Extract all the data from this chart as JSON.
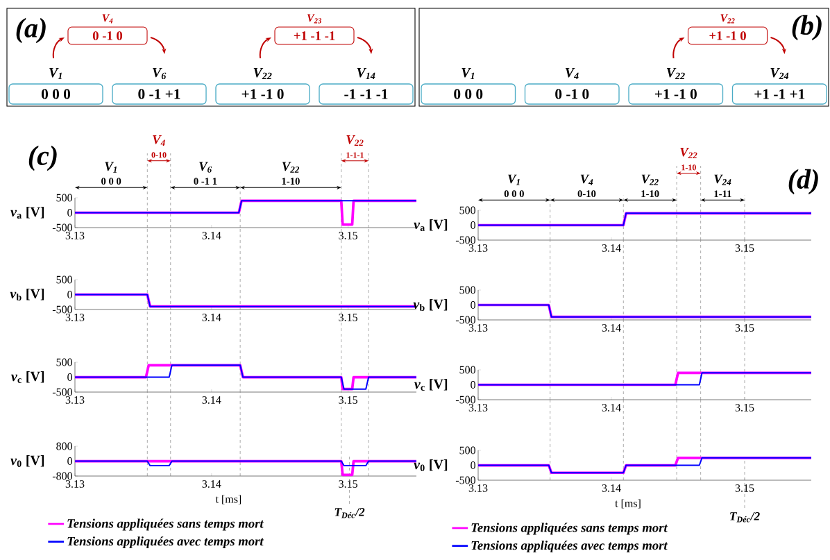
{
  "chart_data": [
    {
      "type": "other",
      "title": "(a)",
      "annotations": [
        "V$_{1}$",
        "0    0    0",
        "V$_{6}$",
        "0 -1 +1",
        "V$_{22}$",
        "+1 -1 0",
        "V$_{14}$",
        "-1 -1 -1",
        "V$_{4}$",
        "0 -1  0",
        "V$_{23}$",
        "+1 -1  -1"
      ]
    },
    {
      "type": "other",
      "title": "(b)",
      "annotations": [
        "V$_{1}$",
        "0    0    0",
        "V$_{4}$",
        "0 -1 0",
        "V$_{22}$",
        "+1 -1 0",
        "V$_{24}$",
        "+1 -1 +1",
        "V$_{22}$",
        "+1 -1  0"
      ]
    },
    {
      "type": "line",
      "title": "(c)",
      "ylabel": "*v*$_{a}$ [V]",
      "xlim": [
        3.13,
        3.155
      ],
      "ylim": [
        -500,
        500
      ],
      "xticks": [
        3.13,
        3.14,
        3.15
      ],
      "yticks": [
        -500,
        0,
        500
      ],
      "series": [
        {
          "color": "#ff00ff",
          "x": [
            3.13,
            3.142,
            3.1422,
            3.1495,
            3.1496,
            3.1503,
            3.1504,
            3.155
          ],
          "values": [
            0,
            0,
            400,
            400,
            -400,
            -400,
            400,
            400
          ]
        },
        {
          "color": "#0000ff",
          "x": [
            3.13,
            3.142,
            3.1422,
            3.155
          ],
          "values": [
            0,
            0,
            400,
            400
          ]
        }
      ],
      "annotations": [
        "V$_{1}$",
        "0 0 0",
        "V$_{4}$",
        "0-10",
        "V$_{6}$",
        "0 -1  1",
        "V$_{22}$",
        "1-10",
        "V$_{22}$",
        "1-1-1"
      ],
      "ref_lines": [
        {
          "axis": "x",
          "value": 3.1353,
          "color": "#808080",
          "line_style": "dashed"
        },
        {
          "axis": "x",
          "value": 3.137,
          "color": "#808080",
          "line_style": "dashed"
        },
        {
          "axis": "x",
          "value": 3.1421,
          "color": "#808080",
          "line_style": "dashed"
        },
        {
          "axis": "x",
          "value": 3.1495,
          "color": "#808080",
          "line_style": "dashed"
        },
        {
          "axis": "x",
          "value": 3.1515,
          "color": "#808080",
          "line_style": "dashed"
        }
      ]
    },
    {
      "type": "line",
      "ylabel": "*v*$_{b}$ [V]",
      "xlim": [
        3.13,
        3.155
      ],
      "ylim": [
        -500,
        500
      ],
      "xticks": [
        3.13,
        3.14,
        3.15
      ],
      "yticks": [
        -500,
        0,
        500
      ],
      "series": [
        {
          "color": "#ff00ff",
          "x": [
            3.13,
            3.1353,
            3.1355,
            3.155
          ],
          "values": [
            0,
            0,
            -400,
            -400
          ]
        },
        {
          "color": "#0000ff",
          "x": [
            3.13,
            3.1353,
            3.1355,
            3.155
          ],
          "values": [
            0,
            0,
            -400,
            -400
          ]
        }
      ],
      "ref_lines": [
        {
          "axis": "x",
          "value": 3.1353,
          "color": "#808080",
          "line_style": "dashed"
        },
        {
          "axis": "x",
          "value": 3.137,
          "color": "#808080",
          "line_style": "dashed"
        },
        {
          "axis": "x",
          "value": 3.1421,
          "color": "#808080",
          "line_style": "dashed"
        },
        {
          "axis": "x",
          "value": 3.1495,
          "color": "#808080",
          "line_style": "dashed"
        },
        {
          "axis": "x",
          "value": 3.1515,
          "color": "#808080",
          "line_style": "dashed"
        }
      ]
    },
    {
      "type": "line",
      "ylabel": "*v*$_{c}$ [V]",
      "xlim": [
        3.13,
        3.155
      ],
      "ylim": [
        -500,
        500
      ],
      "xticks": [
        3.13,
        3.14,
        3.15
      ],
      "yticks": [
        -500,
        0,
        500
      ],
      "series": [
        {
          "color": "#ff00ff",
          "x": [
            3.13,
            3.1352,
            3.1354,
            3.1421,
            3.1423,
            3.1495,
            3.1496,
            3.1503,
            3.1504,
            3.155
          ],
          "values": [
            0,
            0,
            400,
            400,
            0,
            0,
            -400,
            -400,
            0,
            0
          ]
        },
        {
          "color": "#0000ff",
          "x": [
            3.13,
            3.1369,
            3.1371,
            3.1421,
            3.1423,
            3.1495,
            3.1497,
            3.1513,
            3.1515,
            3.155
          ],
          "values": [
            0,
            0,
            400,
            400,
            0,
            0,
            -400,
            -400,
            0,
            0
          ]
        }
      ],
      "ref_lines": [
        {
          "axis": "x",
          "value": 3.1353,
          "color": "#808080",
          "line_style": "dashed"
        },
        {
          "axis": "x",
          "value": 3.137,
          "color": "#808080",
          "line_style": "dashed"
        },
        {
          "axis": "x",
          "value": 3.1421,
          "color": "#808080",
          "line_style": "dashed"
        },
        {
          "axis": "x",
          "value": 3.1495,
          "color": "#808080",
          "line_style": "dashed"
        },
        {
          "axis": "x",
          "value": 3.1515,
          "color": "#808080",
          "line_style": "dashed"
        }
      ]
    },
    {
      "type": "line",
      "ylabel": "*v*$_{0}$ [V]",
      "xlabel": "t [ms]",
      "xlim": [
        3.13,
        3.155
      ],
      "ylim": [
        -800,
        800
      ],
      "xticks": [
        3.13,
        3.14,
        3.15
      ],
      "yticks": [
        -800,
        0,
        800
      ],
      "legend": "bottom",
      "series": [
        {
          "name": "Tensions appliquées sans temps mort",
          "color": "#ff00ff",
          "x": [
            3.13,
            3.1495,
            3.1496,
            3.1503,
            3.1504,
            3.155
          ],
          "values": [
            0,
            0,
            -740,
            -740,
            0,
            0
          ]
        },
        {
          "name": "Tensions appliquées avec temps mort",
          "color": "#0000ff",
          "x": [
            3.13,
            3.1353,
            3.1355,
            3.1369,
            3.1371,
            3.1495,
            3.1497,
            3.1513,
            3.1515,
            3.155
          ],
          "values": [
            0,
            0,
            -240,
            -240,
            0,
            0,
            -240,
            -240,
            0,
            0
          ]
        }
      ],
      "ref_lines": [
        {
          "axis": "x",
          "value": 3.1353,
          "color": "#808080",
          "line_style": "dashed"
        },
        {
          "axis": "x",
          "value": 3.137,
          "color": "#808080",
          "line_style": "dashed"
        },
        {
          "axis": "x",
          "value": 3.1421,
          "color": "#808080",
          "line_style": "dashed"
        },
        {
          "axis": "x",
          "value": 3.1495,
          "color": "#808080",
          "line_style": "dashed"
        },
        {
          "axis": "x",
          "value": 3.1515,
          "color": "#808080",
          "line_style": "dashed"
        },
        {
          "axis": "x",
          "value": 3.1501,
          "label": "T$_{Déc}$/2",
          "color": "#808080",
          "line_style": "dashed"
        }
      ]
    },
    {
      "type": "line",
      "title": "(d)",
      "ylabel": "*v*$_{a}$ [V]",
      "xlim": [
        3.13,
        3.155
      ],
      "ylim": [
        -500,
        500
      ],
      "xticks": [
        3.13,
        3.14,
        3.15
      ],
      "yticks": [
        -500,
        0,
        500
      ],
      "series": [
        {
          "color": "#ff00ff",
          "x": [
            3.13,
            3.1409,
            3.1411,
            3.155
          ],
          "values": [
            0,
            0,
            400,
            400
          ]
        },
        {
          "color": "#0000ff",
          "x": [
            3.13,
            3.1409,
            3.1411,
            3.155
          ],
          "values": [
            0,
            0,
            400,
            400
          ]
        }
      ],
      "annotations": [
        "V$_{1}$",
        "0 0 0",
        "V$_{4}$",
        "0-10",
        "V$_{22}$",
        "1-10",
        "V$_{22}$",
        "1-10",
        "V$_{24}$",
        "1-11"
      ],
      "ref_lines": [
        {
          "axis": "x",
          "value": 3.1354,
          "color": "#808080",
          "line_style": "dashed"
        },
        {
          "axis": "x",
          "value": 3.1409,
          "color": "#808080",
          "line_style": "dashed"
        },
        {
          "axis": "x",
          "value": 3.1449,
          "color": "#808080",
          "line_style": "dashed"
        },
        {
          "axis": "x",
          "value": 3.1467,
          "color": "#808080",
          "line_style": "dashed"
        },
        {
          "axis": "x",
          "value": 3.15,
          "color": "#808080",
          "line_style": "dashed"
        }
      ]
    },
    {
      "type": "line",
      "ylabel": "*v*$_{b}$ [V]",
      "xlim": [
        3.13,
        3.155
      ],
      "ylim": [
        -500,
        500
      ],
      "xticks": [
        3.13,
        3.14,
        3.15
      ],
      "yticks": [
        -500,
        0,
        500
      ],
      "series": [
        {
          "color": "#ff00ff",
          "x": [
            3.13,
            3.1353,
            3.1355,
            3.155
          ],
          "values": [
            0,
            0,
            -400,
            -400
          ]
        },
        {
          "color": "#0000ff",
          "x": [
            3.13,
            3.1353,
            3.1355,
            3.155
          ],
          "values": [
            0,
            0,
            -400,
            -400
          ]
        }
      ],
      "ref_lines": [
        {
          "axis": "x",
          "value": 3.1354,
          "color": "#808080",
          "line_style": "dashed"
        },
        {
          "axis": "x",
          "value": 3.1409,
          "color": "#808080",
          "line_style": "dashed"
        },
        {
          "axis": "x",
          "value": 3.1449,
          "color": "#808080",
          "line_style": "dashed"
        },
        {
          "axis": "x",
          "value": 3.1467,
          "color": "#808080",
          "line_style": "dashed"
        },
        {
          "axis": "x",
          "value": 3.15,
          "color": "#808080",
          "line_style": "dashed"
        }
      ]
    },
    {
      "type": "line",
      "ylabel": "*v*$_{c}$ [V]",
      "xlim": [
        3.13,
        3.155
      ],
      "ylim": [
        -500,
        500
      ],
      "xticks": [
        3.13,
        3.14,
        3.15
      ],
      "yticks": [
        -500,
        0,
        500
      ],
      "series": [
        {
          "color": "#ff00ff",
          "x": [
            3.13,
            3.1448,
            3.145,
            3.155
          ],
          "values": [
            0,
            0,
            400,
            400
          ]
        },
        {
          "color": "#0000ff",
          "x": [
            3.13,
            3.1466,
            3.1468,
            3.155
          ],
          "values": [
            0,
            0,
            400,
            400
          ]
        }
      ],
      "ref_lines": [
        {
          "axis": "x",
          "value": 3.1354,
          "color": "#808080",
          "line_style": "dashed"
        },
        {
          "axis": "x",
          "value": 3.1409,
          "color": "#808080",
          "line_style": "dashed"
        },
        {
          "axis": "x",
          "value": 3.1449,
          "color": "#808080",
          "line_style": "dashed"
        },
        {
          "axis": "x",
          "value": 3.1467,
          "color": "#808080",
          "line_style": "dashed"
        },
        {
          "axis": "x",
          "value": 3.15,
          "color": "#808080",
          "line_style": "dashed"
        }
      ]
    },
    {
      "type": "line",
      "ylabel": "*v*$_{0}$ [V]",
      "xlabel": "t [ms]",
      "xlim": [
        3.13,
        3.155
      ],
      "ylim": [
        -500,
        500
      ],
      "xticks": [
        3.13,
        3.14,
        3.15
      ],
      "yticks": [
        -500,
        0,
        500
      ],
      "legend": "bottom",
      "series": [
        {
          "name": "Tensions appliquées sans temps mort",
          "color": "#ff00ff",
          "x": [
            3.13,
            3.1353,
            3.1355,
            3.1409,
            3.1411,
            3.1448,
            3.145,
            3.155
          ],
          "values": [
            0,
            0,
            -250,
            -250,
            0,
            0,
            250,
            250
          ]
        },
        {
          "name": "Tensions appliquées avec temps mort",
          "color": "#0000ff",
          "x": [
            3.13,
            3.1353,
            3.1355,
            3.1409,
            3.1411,
            3.1466,
            3.1468,
            3.155
          ],
          "values": [
            0,
            0,
            -250,
            -250,
            0,
            0,
            250,
            250
          ]
        }
      ],
      "ref_lines": [
        {
          "axis": "x",
          "value": 3.1354,
          "color": "#808080",
          "line_style": "dashed"
        },
        {
          "axis": "x",
          "value": 3.1409,
          "color": "#808080",
          "line_style": "dashed"
        },
        {
          "axis": "x",
          "value": 3.1449,
          "color": "#808080",
          "line_style": "dashed"
        },
        {
          "axis": "x",
          "value": 3.1467,
          "color": "#808080",
          "line_style": "dashed"
        },
        {
          "axis": "x",
          "value": 3.15,
          "label": "T$_{Déc}$/2",
          "color": "#808080",
          "line_style": "dashed"
        }
      ]
    }
  ]
}
